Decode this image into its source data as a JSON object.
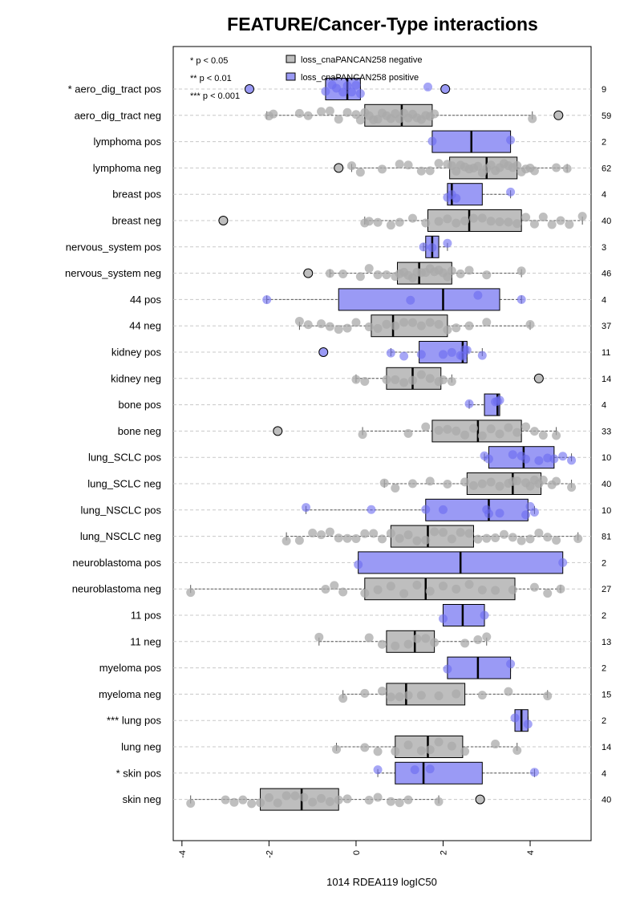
{
  "chart_data": {
    "type": "boxplot",
    "title": "FEATURE/Cancer-Type interactions",
    "xlabel": "1014 RDEA119 logIC50",
    "xlim": [
      -4.2,
      5.4
    ],
    "xticks": [
      -4,
      -2,
      0,
      2,
      4
    ],
    "xtick_labels": [
      "-4",
      "-2",
      "0",
      "2",
      "4"
    ],
    "grid": "horizontal dashed",
    "legend_position": "top-left",
    "significance_legend": [
      "* p < 0.05",
      "** p < 0.01",
      "*** p < 0.001"
    ],
    "legend": [
      {
        "name": "loss_cnaPANCAN258 negative",
        "color": "#bebebe"
      },
      {
        "name": "loss_cnaPANCAN258 positive",
        "color": "#9a9af5"
      }
    ],
    "colors": {
      "negative_box": "#bebebe",
      "negative_point": "#a9a9a9",
      "positive_box": "#9a9af5",
      "positive_point": "#6b6bf0",
      "outlier_stroke": "#000000"
    },
    "rows": [
      {
        "label": "* aero_dig_tract pos",
        "n": "9",
        "group": "positive",
        "whisker_low": -0.7,
        "q1": -0.7,
        "median": -0.2,
        "q3": 0.1,
        "whisker_high": 0.1,
        "points": [
          -0.7,
          -0.55,
          -0.45,
          -0.3,
          -0.2,
          -0.1,
          0.0,
          0.1,
          1.65
        ],
        "outliers": [
          -2.45,
          2.05
        ]
      },
      {
        "label": "aero_dig_tract neg",
        "n": "59",
        "group": "negative",
        "whisker_low": -2.05,
        "q1": 0.2,
        "median": 1.05,
        "q3": 1.75,
        "whisker_high": 4.05,
        "points": [
          -2.0,
          -1.9,
          -1.3,
          -1.1,
          -0.8,
          -0.6,
          -0.4,
          -0.2,
          0.0,
          0.1,
          0.2,
          0.3,
          0.4,
          0.5,
          0.6,
          0.7,
          0.8,
          0.9,
          1.0,
          1.1,
          1.2,
          1.3,
          1.4,
          1.5,
          1.6,
          1.7,
          1.8,
          4.05
        ],
        "outliers": [
          4.65
        ]
      },
      {
        "label": "lymphoma pos",
        "n": "2",
        "group": "positive",
        "whisker_low": 1.75,
        "q1": 1.75,
        "median": 2.65,
        "q3": 3.55,
        "whisker_high": 3.55,
        "points": [
          1.75,
          3.55
        ],
        "outliers": []
      },
      {
        "label": "lymphoma neg",
        "n": "62",
        "group": "negative",
        "whisker_low": -0.1,
        "q1": 2.15,
        "median": 3.0,
        "q3": 3.7,
        "whisker_high": 4.85,
        "points": [
          -0.1,
          0.1,
          0.6,
          1.0,
          1.2,
          1.5,
          1.7,
          1.9,
          2.1,
          2.2,
          2.3,
          2.4,
          2.5,
          2.6,
          2.7,
          2.8,
          2.9,
          3.0,
          3.1,
          3.2,
          3.3,
          3.4,
          3.5,
          3.6,
          3.7,
          3.8,
          3.9,
          4.0,
          4.1,
          4.6,
          4.85
        ],
        "outliers": [
          -0.4
        ]
      },
      {
        "label": "breast pos",
        "n": "4",
        "group": "positive",
        "whisker_low": 2.1,
        "q1": 2.1,
        "median": 2.2,
        "q3": 2.9,
        "whisker_high": 3.55,
        "points": [
          2.1,
          2.2,
          2.3,
          3.55
        ],
        "outliers": []
      },
      {
        "label": "breast neg",
        "n": "40",
        "group": "negative",
        "whisker_low": 0.2,
        "q1": 1.65,
        "median": 2.6,
        "q3": 3.8,
        "whisker_high": 5.2,
        "points": [
          0.2,
          0.3,
          0.5,
          0.8,
          1.0,
          1.3,
          1.6,
          1.9,
          2.1,
          2.3,
          2.5,
          2.7,
          2.9,
          3.1,
          3.3,
          3.5,
          3.7,
          3.9,
          4.1,
          4.3,
          4.5,
          4.7,
          4.9,
          5.2
        ],
        "outliers": [
          -3.05
        ]
      },
      {
        "label": "nervous_system pos",
        "n": "3",
        "group": "positive",
        "whisker_low": 1.55,
        "q1": 1.6,
        "median": 1.75,
        "q3": 1.9,
        "whisker_high": 2.1,
        "points": [
          1.55,
          1.75,
          2.1
        ],
        "outliers": []
      },
      {
        "label": "nervous_system neg",
        "n": "46",
        "group": "negative",
        "whisker_low": -0.6,
        "q1": 0.95,
        "median": 1.45,
        "q3": 2.2,
        "whisker_high": 3.8,
        "points": [
          -0.6,
          -0.3,
          0.1,
          0.3,
          0.5,
          0.7,
          0.9,
          1.0,
          1.1,
          1.2,
          1.3,
          1.4,
          1.5,
          1.6,
          1.7,
          1.8,
          1.9,
          2.0,
          2.1,
          2.2,
          2.4,
          2.6,
          3.0,
          3.8
        ],
        "outliers": [
          -1.1
        ]
      },
      {
        "label": "44 pos",
        "n": "4",
        "group": "positive",
        "whisker_low": -2.05,
        "q1": -0.4,
        "median": 2.0,
        "q3": 3.3,
        "whisker_high": 3.8,
        "points": [
          -2.05,
          1.25,
          2.8,
          3.8
        ],
        "outliers": []
      },
      {
        "label": "44 neg",
        "n": "37",
        "group": "negative",
        "whisker_low": -1.3,
        "q1": 0.35,
        "median": 0.85,
        "q3": 2.1,
        "whisker_high": 4.0,
        "points": [
          -1.3,
          -1.1,
          -0.8,
          -0.6,
          -0.4,
          -0.2,
          0.0,
          0.3,
          0.5,
          0.7,
          0.9,
          1.1,
          1.3,
          1.5,
          1.7,
          1.9,
          2.1,
          2.3,
          2.6,
          3.0,
          4.0
        ],
        "outliers": []
      },
      {
        "label": "kidney pos",
        "n": "11",
        "group": "positive",
        "whisker_low": 0.8,
        "q1": 1.45,
        "median": 2.45,
        "q3": 2.55,
        "whisker_high": 2.9,
        "points": [
          0.8,
          1.1,
          1.5,
          2.0,
          2.2,
          2.4,
          2.45,
          2.5,
          2.55,
          2.9
        ],
        "outliers": [
          -0.75
        ]
      },
      {
        "label": "kidney neg",
        "n": "14",
        "group": "negative",
        "whisker_low": 0.0,
        "q1": 0.7,
        "median": 1.3,
        "q3": 1.95,
        "whisker_high": 2.2,
        "points": [
          0.0,
          0.2,
          0.7,
          0.9,
          1.1,
          1.3,
          1.5,
          1.7,
          1.9,
          2.0,
          2.2
        ],
        "outliers": [
          4.2
        ]
      },
      {
        "label": "bone pos",
        "n": "4",
        "group": "positive",
        "whisker_low": 2.6,
        "q1": 2.95,
        "median": 3.25,
        "q3": 3.3,
        "whisker_high": 3.3,
        "points": [
          2.6,
          3.2,
          3.25,
          3.3
        ],
        "outliers": []
      },
      {
        "label": "bone neg",
        "n": "33",
        "group": "negative",
        "whisker_low": 0.15,
        "q1": 1.75,
        "median": 2.8,
        "q3": 3.8,
        "whisker_high": 4.6,
        "points": [
          0.15,
          1.2,
          1.6,
          1.9,
          2.1,
          2.3,
          2.5,
          2.7,
          2.9,
          3.1,
          3.3,
          3.5,
          3.7,
          3.9,
          4.1,
          4.3,
          4.6
        ],
        "outliers": [
          -1.8
        ]
      },
      {
        "label": "lung_SCLC pos",
        "n": "10",
        "group": "positive",
        "whisker_low": 2.95,
        "q1": 3.05,
        "median": 3.85,
        "q3": 4.55,
        "whisker_high": 4.95,
        "points": [
          2.95,
          3.05,
          3.6,
          3.8,
          3.9,
          4.2,
          4.4,
          4.55,
          4.75,
          4.95
        ],
        "outliers": []
      },
      {
        "label": "lung_SCLC neg",
        "n": "40",
        "group": "negative",
        "whisker_low": 0.65,
        "q1": 2.55,
        "median": 3.6,
        "q3": 4.25,
        "whisker_high": 4.95,
        "points": [
          0.65,
          0.9,
          1.3,
          1.7,
          2.1,
          2.5,
          2.7,
          2.9,
          3.1,
          3.3,
          3.5,
          3.6,
          3.7,
          3.9,
          4.0,
          4.1,
          4.2,
          4.3,
          4.5,
          4.6,
          4.95
        ],
        "outliers": []
      },
      {
        "label": "lung_NSCLC pos",
        "n": "10",
        "group": "positive",
        "whisker_low": -1.15,
        "q1": 1.6,
        "median": 3.05,
        "q3": 3.95,
        "whisker_high": 4.1,
        "points": [
          -1.15,
          0.35,
          1.6,
          2.0,
          3.0,
          3.05,
          3.3,
          3.9,
          4.0,
          4.1
        ],
        "outliers": []
      },
      {
        "label": "lung_NSCLC neg",
        "n": "81",
        "group": "negative",
        "whisker_low": -1.6,
        "q1": 0.8,
        "median": 1.65,
        "q3": 2.7,
        "whisker_high": 5.1,
        "points": [
          -1.6,
          -1.3,
          -1.0,
          -0.8,
          -0.6,
          -0.4,
          -0.2,
          0.0,
          0.2,
          0.4,
          0.6,
          0.8,
          1.0,
          1.2,
          1.4,
          1.6,
          1.8,
          2.0,
          2.2,
          2.4,
          2.6,
          2.8,
          3.0,
          3.2,
          3.4,
          3.6,
          3.8,
          4.0,
          4.2,
          4.4,
          4.6,
          5.1
        ],
        "outliers": []
      },
      {
        "label": "neuroblastoma pos",
        "n": "2",
        "group": "positive",
        "whisker_low": 0.05,
        "q1": 0.05,
        "median": 2.4,
        "q3": 4.75,
        "whisker_high": 4.75,
        "points": [
          0.05,
          4.75
        ],
        "outliers": []
      },
      {
        "label": "neuroblastoma neg",
        "n": "27",
        "group": "negative",
        "whisker_low": -3.8,
        "q1": 0.2,
        "median": 1.6,
        "q3": 3.65,
        "whisker_high": 4.7,
        "points": [
          -3.8,
          -0.7,
          -0.5,
          -0.3,
          0.2,
          0.5,
          0.8,
          1.1,
          1.4,
          1.7,
          2.0,
          2.3,
          2.6,
          2.9,
          3.2,
          3.6,
          4.1,
          4.4,
          4.7
        ],
        "outliers": []
      },
      {
        "label": "11 pos",
        "n": "2",
        "group": "positive",
        "whisker_low": 2.0,
        "q1": 2.0,
        "median": 2.45,
        "q3": 2.95,
        "whisker_high": 2.95,
        "points": [
          2.0,
          2.95
        ],
        "outliers": []
      },
      {
        "label": "11 neg",
        "n": "13",
        "group": "negative",
        "whisker_low": -0.85,
        "q1": 0.7,
        "median": 1.35,
        "q3": 1.8,
        "whisker_high": 3.0,
        "points": [
          -0.85,
          0.3,
          0.6,
          0.9,
          1.2,
          1.4,
          1.6,
          1.8,
          2.5,
          2.8,
          3.0
        ],
        "outliers": []
      },
      {
        "label": "myeloma pos",
        "n": "2",
        "group": "positive",
        "whisker_low": 2.1,
        "q1": 2.1,
        "median": 2.8,
        "q3": 3.55,
        "whisker_high": 3.55,
        "points": [
          2.1,
          3.55
        ],
        "outliers": []
      },
      {
        "label": "myeloma neg",
        "n": "15",
        "group": "negative",
        "whisker_low": -0.3,
        "q1": 0.7,
        "median": 1.15,
        "q3": 2.5,
        "whisker_high": 4.4,
        "points": [
          -0.3,
          0.2,
          0.6,
          0.8,
          1.0,
          1.2,
          1.5,
          1.9,
          2.3,
          2.9,
          3.5,
          4.4
        ],
        "outliers": []
      },
      {
        "label": "*** lung pos",
        "n": "2",
        "group": "positive",
        "whisker_low": 3.65,
        "q1": 3.65,
        "median": 3.8,
        "q3": 3.95,
        "whisker_high": 3.95,
        "points": [
          3.65,
          3.95
        ],
        "outliers": []
      },
      {
        "label": "lung neg",
        "n": "14",
        "group": "negative",
        "whisker_low": -0.45,
        "q1": 0.9,
        "median": 1.65,
        "q3": 2.45,
        "whisker_high": 3.7,
        "points": [
          -0.45,
          0.2,
          0.5,
          0.9,
          1.2,
          1.5,
          1.7,
          1.9,
          2.2,
          2.5,
          3.2,
          3.7
        ],
        "outliers": []
      },
      {
        "label": "* skin pos",
        "n": "4",
        "group": "positive",
        "whisker_low": 0.5,
        "q1": 0.9,
        "median": 1.55,
        "q3": 2.9,
        "whisker_high": 4.1,
        "points": [
          0.5,
          1.35,
          1.7,
          4.1
        ],
        "outliers": []
      },
      {
        "label": "skin neg",
        "n": "40",
        "group": "negative",
        "whisker_low": -3.8,
        "q1": -2.2,
        "median": -1.25,
        "q3": -0.4,
        "whisker_high": 1.9,
        "points": [
          -3.8,
          -3.0,
          -2.8,
          -2.6,
          -2.4,
          -2.2,
          -2.0,
          -1.8,
          -1.6,
          -1.4,
          -1.2,
          -1.0,
          -0.8,
          -0.6,
          -0.4,
          -0.2,
          0.3,
          0.5,
          0.8,
          1.0,
          1.2,
          1.9
        ],
        "outliers": [
          2.85
        ]
      }
    ]
  }
}
